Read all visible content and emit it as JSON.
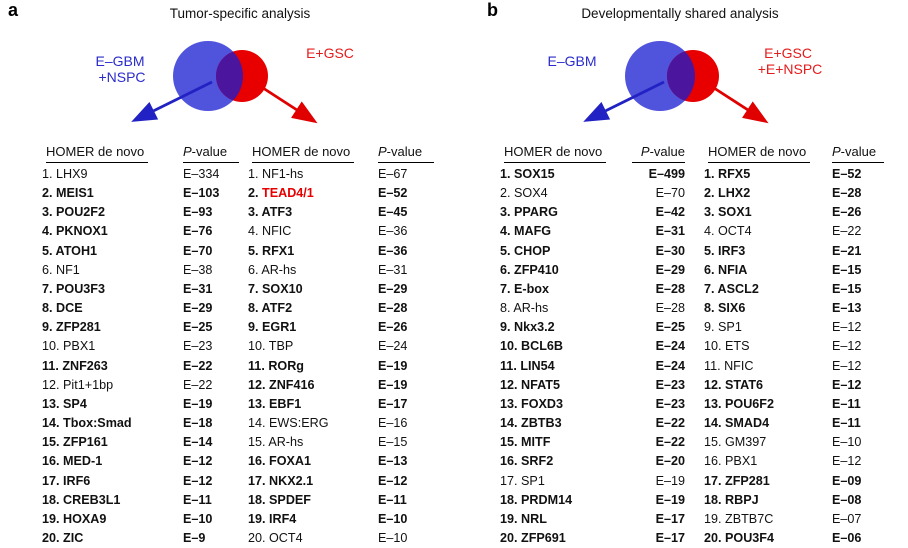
{
  "colors": {
    "blue_circle": "#5053dc",
    "red_circle": "#e80000",
    "overlap": "#4b169d",
    "blue_text": "#2b2bcc",
    "red_text": "#e41c1c",
    "blue_arrow": "#2222c4",
    "red_arrow": "#e00000",
    "highlight_gene": "#e60000"
  },
  "panels": [
    {
      "label": "a",
      "title": "Tumor-specific analysis",
      "venn": {
        "left_label": [
          "E–GBM",
          "+NSPC"
        ],
        "right_label": [
          "E+GSC",
          ""
        ]
      },
      "columns": [
        {
          "motif_header": "HOMER de novo",
          "pvalue_header_italic": "P",
          "pvalue_header_rest": "-value",
          "p_align": "left",
          "rows": [
            {
              "rank": "1.",
              "name": "LHX9",
              "bold": false,
              "p": "E–334"
            },
            {
              "rank": "2.",
              "name": "MEIS1",
              "bold": true,
              "p": "E–103"
            },
            {
              "rank": "3.",
              "name": "POU2F2",
              "bold": true,
              "p": "E–93"
            },
            {
              "rank": "4.",
              "name": "PKNOX1",
              "bold": true,
              "p": "E–76"
            },
            {
              "rank": "5.",
              "name": "ATOH1",
              "bold": true,
              "p": "E–70"
            },
            {
              "rank": "6.",
              "name": "NF1",
              "bold": false,
              "p": "E–38"
            },
            {
              "rank": "7.",
              "name": "POU3F3",
              "bold": true,
              "p": "E–31"
            },
            {
              "rank": "8.",
              "name": "DCE",
              "bold": true,
              "p": "E–29"
            },
            {
              "rank": "9.",
              "name": "ZFP281",
              "bold": true,
              "p": "E–25"
            },
            {
              "rank": "10.",
              "name": "PBX1",
              "bold": false,
              "p": "E–23"
            },
            {
              "rank": "11.",
              "name": "ZNF263",
              "bold": true,
              "p": "E–22"
            },
            {
              "rank": "12.",
              "name": "Pit1+1bp",
              "bold": false,
              "p": "E–22"
            },
            {
              "rank": "13.",
              "name": "SP4",
              "bold": true,
              "p": "E–19"
            },
            {
              "rank": "14.",
              "name": "Tbox:Smad",
              "bold": true,
              "p": "E–18"
            },
            {
              "rank": "15.",
              "name": "ZFP161",
              "bold": true,
              "p": "E–14"
            },
            {
              "rank": "16.",
              "name": "MED-1",
              "bold": true,
              "p": "E–12"
            },
            {
              "rank": "17.",
              "name": "IRF6",
              "bold": true,
              "p": "E–12"
            },
            {
              "rank": "18.",
              "name": "CREB3L1",
              "bold": true,
              "p": "E–11"
            },
            {
              "rank": "19.",
              "name": "HOXA9",
              "bold": true,
              "p": "E–10"
            },
            {
              "rank": "20.",
              "name": "ZIC",
              "bold": true,
              "p": "E–9"
            }
          ]
        },
        {
          "motif_header": "HOMER de novo",
          "pvalue_header_italic": "P",
          "pvalue_header_rest": "-value",
          "p_align": "left",
          "rows": [
            {
              "rank": "1.",
              "name": "NF1-hs",
              "bold": false,
              "p": "E–67"
            },
            {
              "rank": "2.",
              "name": "TEAD4/1",
              "bold": true,
              "p": "E–52",
              "color": "#e60000"
            },
            {
              "rank": "3.",
              "name": "ATF3",
              "bold": true,
              "p": "E–45"
            },
            {
              "rank": "4.",
              "name": "NFIC",
              "bold": false,
              "p": "E–36"
            },
            {
              "rank": "5.",
              "name": "RFX1",
              "bold": true,
              "p": "E–36"
            },
            {
              "rank": "6.",
              "name": "AR-hs",
              "bold": false,
              "p": "E–31"
            },
            {
              "rank": "7.",
              "name": "SOX10",
              "bold": true,
              "p": "E–29"
            },
            {
              "rank": "8.",
              "name": "ATF2",
              "bold": true,
              "p": "E–28"
            },
            {
              "rank": "9.",
              "name": "EGR1",
              "bold": true,
              "p": "E–26"
            },
            {
              "rank": "10.",
              "name": "TBP",
              "bold": false,
              "p": "E–24"
            },
            {
              "rank": "11.",
              "name": "RORg",
              "bold": true,
              "p": "E–19"
            },
            {
              "rank": "12.",
              "name": "ZNF416",
              "bold": true,
              "p": "E–19"
            },
            {
              "rank": "13.",
              "name": "EBF1",
              "bold": true,
              "p": "E–17"
            },
            {
              "rank": "14.",
              "name": "EWS:ERG",
              "bold": false,
              "p": "E–16"
            },
            {
              "rank": "15.",
              "name": "AR-hs",
              "bold": false,
              "p": "E–15"
            },
            {
              "rank": "16.",
              "name": "FOXA1",
              "bold": true,
              "p": "E–13"
            },
            {
              "rank": "17.",
              "name": "NKX2.1",
              "bold": true,
              "p": "E–12"
            },
            {
              "rank": "18.",
              "name": "SPDEF",
              "bold": true,
              "p": "E–11"
            },
            {
              "rank": "19.",
              "name": "IRF4",
              "bold": true,
              "p": "E–10"
            },
            {
              "rank": "20.",
              "name": "OCT4",
              "bold": false,
              "p": "E–10"
            }
          ]
        }
      ]
    },
    {
      "label": "b",
      "title": "Developmentally shared analysis",
      "venn": {
        "left_label": [
          "E–GBM",
          ""
        ],
        "right_label": [
          "E+GSC",
          "+E+NSPC"
        ]
      },
      "columns": [
        {
          "motif_header": "HOMER de novo",
          "pvalue_header_italic": "P",
          "pvalue_header_rest": "-value",
          "p_align": "right",
          "rows": [
            {
              "rank": "1.",
              "name": "SOX15",
              "bold": true,
              "p": "E–499"
            },
            {
              "rank": "2.",
              "name": "SOX4",
              "bold": false,
              "p": "E–70"
            },
            {
              "rank": "3.",
              "name": "PPARG",
              "bold": true,
              "p": "E–42"
            },
            {
              "rank": "4.",
              "name": "MAFG",
              "bold": true,
              "p": "E–31"
            },
            {
              "rank": "5.",
              "name": "CHOP",
              "bold": true,
              "p": "E–30"
            },
            {
              "rank": "6.",
              "name": "ZFP410",
              "bold": true,
              "p": "E–29"
            },
            {
              "rank": "7.",
              "name": "E-box",
              "bold": true,
              "p": "E–28"
            },
            {
              "rank": "8.",
              "name": "AR-hs",
              "bold": false,
              "p": "E–28"
            },
            {
              "rank": "9.",
              "name": "Nkx3.2",
              "bold": true,
              "p": "E–25"
            },
            {
              "rank": "10.",
              "name": "BCL6B",
              "bold": true,
              "p": "E–24"
            },
            {
              "rank": "11.",
              "name": "LIN54",
              "bold": true,
              "p": "E–24"
            },
            {
              "rank": "12.",
              "name": "NFAT5",
              "bold": true,
              "p": "E–23"
            },
            {
              "rank": "13.",
              "name": "FOXD3",
              "bold": true,
              "p": "E–23"
            },
            {
              "rank": "14.",
              "name": "ZBTB3",
              "bold": true,
              "p": "E–22"
            },
            {
              "rank": "15.",
              "name": "MITF",
              "bold": true,
              "p": "E–22"
            },
            {
              "rank": "16.",
              "name": "SRF2",
              "bold": true,
              "p": "E–20"
            },
            {
              "rank": "17.",
              "name": "SP1",
              "bold": false,
              "p": "E–19"
            },
            {
              "rank": "18.",
              "name": "PRDM14",
              "bold": true,
              "p": "E–19"
            },
            {
              "rank": "19.",
              "name": "NRL",
              "bold": true,
              "p": "E–17"
            },
            {
              "rank": "20.",
              "name": "ZFP691",
              "bold": true,
              "p": "E–17"
            }
          ]
        },
        {
          "motif_header": "HOMER de novo",
          "pvalue_header_italic": "P",
          "pvalue_header_rest": "-value",
          "p_align": "left",
          "rows": [
            {
              "rank": "1.",
              "name": "RFX5",
              "bold": true,
              "p": "E–52"
            },
            {
              "rank": "2.",
              "name": "LHX2",
              "bold": true,
              "p": "E–28"
            },
            {
              "rank": "3.",
              "name": "SOX1",
              "bold": true,
              "p": "E–26"
            },
            {
              "rank": "4.",
              "name": "OCT4",
              "bold": false,
              "p": "E–22"
            },
            {
              "rank": "5.",
              "name": "IRF3",
              "bold": true,
              "p": "E–21"
            },
            {
              "rank": "6.",
              "name": "NFIA",
              "bold": true,
              "p": "E–15"
            },
            {
              "rank": "7.",
              "name": "ASCL2",
              "bold": true,
              "p": "E–15"
            },
            {
              "rank": "8.",
              "name": "SIX6",
              "bold": true,
              "p": "E–13"
            },
            {
              "rank": "9.",
              "name": "SP1",
              "bold": false,
              "p": "E–12"
            },
            {
              "rank": "10.",
              "name": "ETS",
              "bold": false,
              "p": "E–12"
            },
            {
              "rank": "11.",
              "name": "NFIC",
              "bold": false,
              "p": "E–12"
            },
            {
              "rank": "12.",
              "name": "STAT6",
              "bold": true,
              "p": "E–12"
            },
            {
              "rank": "13.",
              "name": "POU6F2",
              "bold": true,
              "p": "E–11"
            },
            {
              "rank": "14.",
              "name": "SMAD4",
              "bold": true,
              "p": "E–11"
            },
            {
              "rank": "15.",
              "name": "GM397",
              "bold": false,
              "p": "E–10"
            },
            {
              "rank": "16.",
              "name": "PBX1",
              "bold": false,
              "p": "E–12"
            },
            {
              "rank": "17.",
              "name": "ZFP281",
              "bold": true,
              "p": "E–09"
            },
            {
              "rank": "18.",
              "name": "RBPJ",
              "bold": true,
              "p": "E–08"
            },
            {
              "rank": "19.",
              "name": "ZBTB7C",
              "bold": false,
              "p": "E–07"
            },
            {
              "rank": "20.",
              "name": "POU3F4",
              "bold": true,
              "p": "E–06"
            }
          ]
        }
      ]
    }
  ]
}
